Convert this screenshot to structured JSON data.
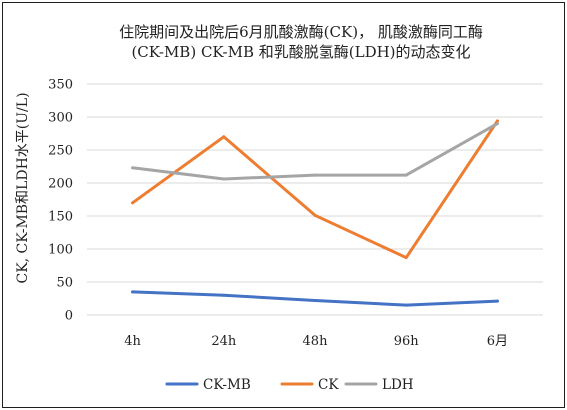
{
  "chart_data": {
    "type": "line",
    "title_lines": [
      "住院期间及出院后6月肌酸激酶(CK)， 肌酸激酶同工酶",
      "(CK-MB) CK-MB 和乳酸脱氢酶(LDH)的动态变化"
    ],
    "title": "住院期间及出院后6月肌酸激酶(CK)， 肌酸激酶同工酶 (CK-MB) CK-MB 和乳酸脱氢酶(LDH)的动态变化",
    "xlabel": "",
    "ylabel": "CK, CK-MB和LDH水平(U/L)",
    "categories": [
      "4h",
      "24h",
      "48h",
      "96h",
      "6月"
    ],
    "ylim": [
      0,
      350
    ],
    "yticks": [
      0,
      50,
      100,
      150,
      200,
      250,
      300,
      350
    ],
    "grid": true,
    "legend_position": "bottom",
    "series": [
      {
        "name": "CK-MB",
        "color": "#4472C4",
        "values": [
          35,
          30,
          22,
          15,
          21
        ]
      },
      {
        "name": "CK",
        "color": "#ED7D31",
        "values": [
          170,
          270,
          151,
          87,
          294
        ]
      },
      {
        "name": "LDH",
        "color": "#A5A5A5",
        "values": [
          223,
          206,
          212,
          212,
          290
        ]
      }
    ]
  }
}
